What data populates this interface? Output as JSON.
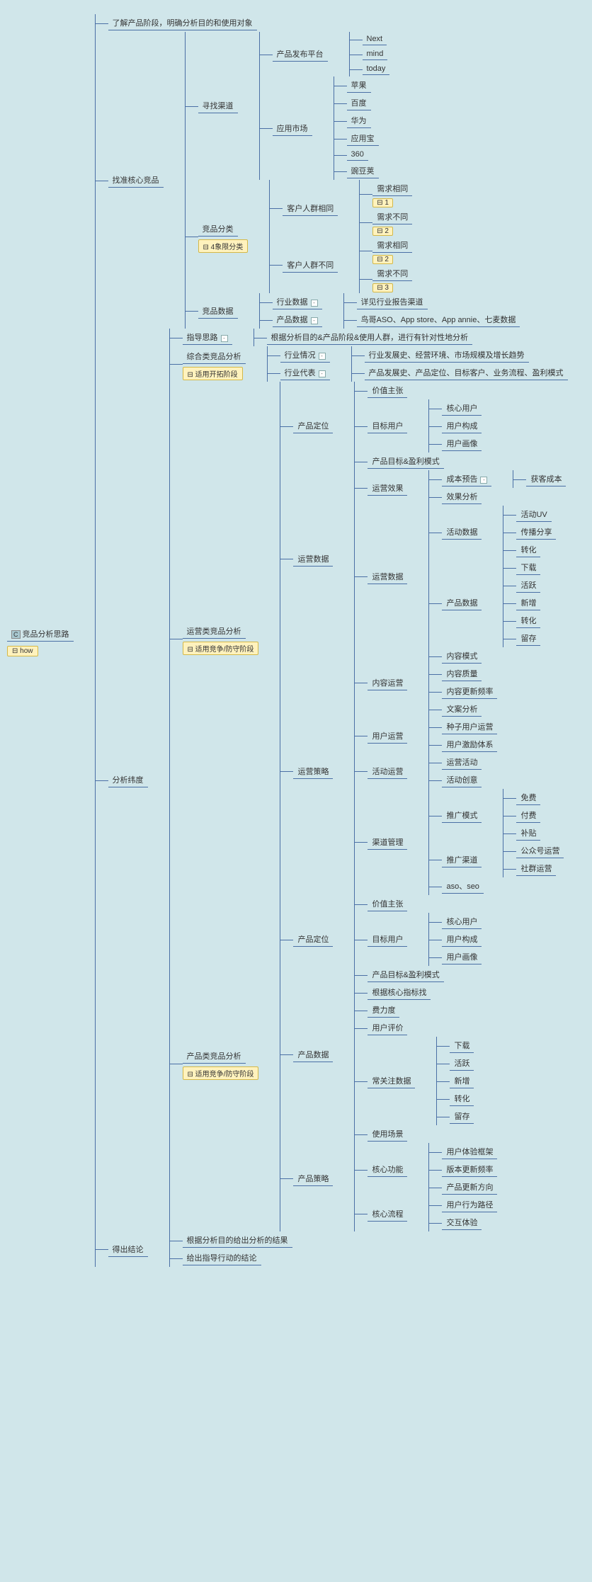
{
  "colors": {
    "bg": "#d0e6ea",
    "line": "#4a6fa5",
    "tag_bg": "#fff2bd",
    "tag_border": "#d4b847"
  },
  "root": {
    "title": "竞品分析思路",
    "tag": "how",
    "icon": "C"
  },
  "n1": "了解产品阶段，明确分析目的和使用对象",
  "n2": "找准核心竞品",
  "n2_1": "寻找渠道",
  "n2_1_1": "产品发布平台",
  "n2_1_1_items": [
    "Next",
    "mind",
    "today"
  ],
  "n2_1_2": "应用市场",
  "n2_1_2_items": [
    "苹果",
    "百度",
    "华为",
    "应用宝",
    "360",
    "豌豆荚"
  ],
  "n2_2": "竞品分类",
  "n2_2_tag": "4象限分类",
  "n2_2_1": "客户人群相同",
  "n2_2_1_a": "需求相同",
  "n2_2_1_a_tag": "1",
  "n2_2_1_b": "需求不同",
  "n2_2_1_b_tag": "2",
  "n2_2_2": "客户人群不同",
  "n2_2_2_a": "需求相同",
  "n2_2_2_a_tag": "2",
  "n2_2_2_b": "需求不同",
  "n2_2_2_b_tag": "3",
  "n2_3": "竞品数据",
  "n2_3_1": "行业数据",
  "n2_3_1_d": "详见行业报告渠道",
  "n2_3_2": "产品数据",
  "n2_3_2_d": "鸟哥ASO、App store、App annie、七麦数据",
  "n3": "分析纬度",
  "n3_0": "指导思路",
  "n3_0_d": "根据分析目的&产品阶段&使用人群，进行有针对性地分析",
  "n3_1": "综合类竞品分析",
  "n3_1_tag": "适用开拓阶段",
  "n3_1_1": "行业情况",
  "n3_1_1_d": "行业发展史、经营环境、市场规模及增长趋势",
  "n3_1_2": "行业代表",
  "n3_1_2_d": "产品发展史、产品定位、目标客户、业务流程、盈利模式",
  "n3_2": "运营类竞品分析",
  "n3_2_tag": "适用竞争/防守阶段",
  "n3_2_1": "产品定位",
  "n3_2_1_a": "价值主张",
  "n3_2_1_b": "目标用户",
  "n3_2_1_b_items": [
    "核心用户",
    "用户构成",
    "用户画像"
  ],
  "n3_2_1_c": "产品目标&盈利模式",
  "n3_2_2": "运营数据",
  "n3_2_2_a": "运营效果",
  "n3_2_2_a_1": "成本预告",
  "n3_2_2_a_1_d": "获客成本",
  "n3_2_2_a_2": "效果分析",
  "n3_2_2_b": "运营数据",
  "n3_2_2_b_1": "活动数据",
  "n3_2_2_b_1_items": [
    "活动UV",
    "传播分享",
    "转化"
  ],
  "n3_2_2_b_2": "产品数据",
  "n3_2_2_b_2_items": [
    "下载",
    "活跃",
    "新增",
    "转化",
    "留存"
  ],
  "n3_2_3": "运营策略",
  "n3_2_3_a": "内容运营",
  "n3_2_3_a_items": [
    "内容模式",
    "内容质量",
    "内容更新频率",
    "文案分析"
  ],
  "n3_2_3_b": "用户运营",
  "n3_2_3_b_items": [
    "种子用户运营",
    "用户激励体系"
  ],
  "n3_2_3_c": "活动运营",
  "n3_2_3_c_items": [
    "运营活动",
    "活动创意"
  ],
  "n3_2_3_d": "渠道管理",
  "n3_2_3_d_1": "推广模式",
  "n3_2_3_d_1_items": [
    "免费",
    "付费",
    "补贴"
  ],
  "n3_2_3_d_2": "推广渠道",
  "n3_2_3_d_2_items": [
    "公众号运营",
    "社群运营"
  ],
  "n3_2_3_d_3": "aso、seo",
  "n3_3": "产品类竞品分析",
  "n3_3_tag": "适用竞争/防守阶段",
  "n3_3_1": "产品定位",
  "n3_3_1_a": "价值主张",
  "n3_3_1_b": "目标用户",
  "n3_3_1_b_items": [
    "核心用户",
    "用户构成",
    "用户画像"
  ],
  "n3_3_1_c": "产品目标&盈利模式",
  "n3_3_2": "产品数据",
  "n3_3_2_a": "根据核心指标找",
  "n3_3_2_b": "费力度",
  "n3_3_2_c": "用户评价",
  "n3_3_2_d": "常关注数据",
  "n3_3_2_d_items": [
    "下载",
    "活跃",
    "新增",
    "转化",
    "留存"
  ],
  "n3_3_3": "产品策略",
  "n3_3_3_a": "使用场景",
  "n3_3_3_b": "核心功能",
  "n3_3_3_b_items": [
    "用户体验框架",
    "版本更新频率",
    "产品更新方向"
  ],
  "n3_3_3_c": "核心流程",
  "n3_3_3_c_items": [
    "用户行为路径",
    "交互体验"
  ],
  "n4": "得出结论",
  "n4_1": "根据分析目的给出分析的结果",
  "n4_2": "给出指导行动的结论"
}
